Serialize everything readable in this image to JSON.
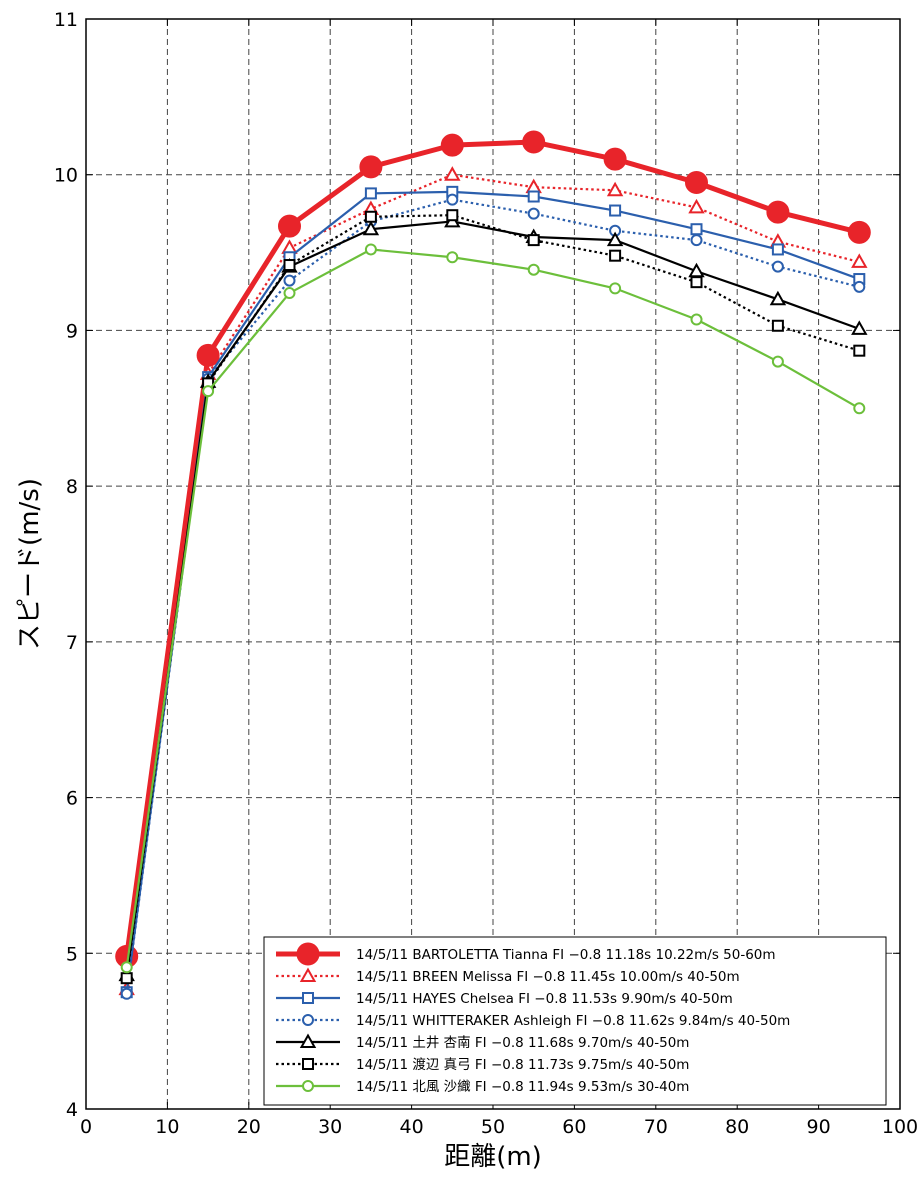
{
  "chart_data": {
    "type": "line",
    "title": "",
    "xlabel": "距離(m)",
    "ylabel": "スピード(m/s)",
    "xlim": [
      0,
      100
    ],
    "ylim": [
      4,
      11
    ],
    "xticks": [
      0,
      10,
      20,
      30,
      40,
      50,
      60,
      70,
      80,
      90,
      100
    ],
    "yticks": [
      4,
      5,
      6,
      7,
      8,
      9,
      10,
      11
    ],
    "grid": true,
    "legend_position": "bottom-right",
    "x": [
      5,
      15,
      25,
      35,
      45,
      55,
      65,
      75,
      85,
      95
    ],
    "series": [
      {
        "name": "14/5/11 BARTOLETTA Tianna FI −0.8 11.18s  10.22m/s  50-60m",
        "color": "#e8242a",
        "marker": "circle-filled",
        "line": "solid-thick",
        "values": [
          4.98,
          8.84,
          9.67,
          10.05,
          10.19,
          10.21,
          10.1,
          9.95,
          9.76,
          9.63
        ]
      },
      {
        "name": "14/5/11 BREEN Melissa FI −0.8 11.45s  10.00m/s  40-50m",
        "color": "#e8242a",
        "marker": "triangle",
        "line": "dotted",
        "values": [
          4.77,
          8.72,
          9.53,
          9.78,
          10.0,
          9.92,
          9.9,
          9.79,
          9.57,
          9.44
        ]
      },
      {
        "name": "14/5/11 HAYES Chelsea FI −0.8 11.53s  9.90m/s  40-50m",
        "color": "#2b5fad",
        "marker": "square",
        "line": "solid",
        "values": [
          4.75,
          8.7,
          9.47,
          9.88,
          9.89,
          9.86,
          9.77,
          9.65,
          9.52,
          9.33
        ]
      },
      {
        "name": "14/5/11 WHITTERAKER Ashleigh FI −0.8 11.62s  9.84m/s  40-50m",
        "color": "#2b5fad",
        "marker": "circle",
        "line": "dotted",
        "values": [
          4.74,
          8.69,
          9.32,
          9.7,
          9.84,
          9.75,
          9.64,
          9.58,
          9.41,
          9.28
        ]
      },
      {
        "name": "14/5/11 土井 杏南 FI −0.8 11.68s  9.70m/s  40-50m",
        "color": "#000000",
        "marker": "triangle",
        "line": "solid",
        "values": [
          4.86,
          8.67,
          9.41,
          9.65,
          9.7,
          9.6,
          9.58,
          9.38,
          9.2,
          9.01
        ]
      },
      {
        "name": "14/5/11 渡辺 真弓 FI −0.8 11.73s  9.75m/s  40-50m",
        "color": "#000000",
        "marker": "square",
        "line": "dotted",
        "values": [
          4.84,
          8.66,
          9.42,
          9.73,
          9.74,
          9.58,
          9.48,
          9.31,
          9.03,
          8.87
        ]
      },
      {
        "name": "14/5/11 北風 沙織 FI −0.8 11.94s  9.53m/s  30-40m",
        "color": "#6cbf3b",
        "marker": "circle",
        "line": "solid",
        "values": [
          4.91,
          8.61,
          9.24,
          9.52,
          9.47,
          9.39,
          9.27,
          9.07,
          8.8,
          8.5
        ]
      }
    ]
  }
}
